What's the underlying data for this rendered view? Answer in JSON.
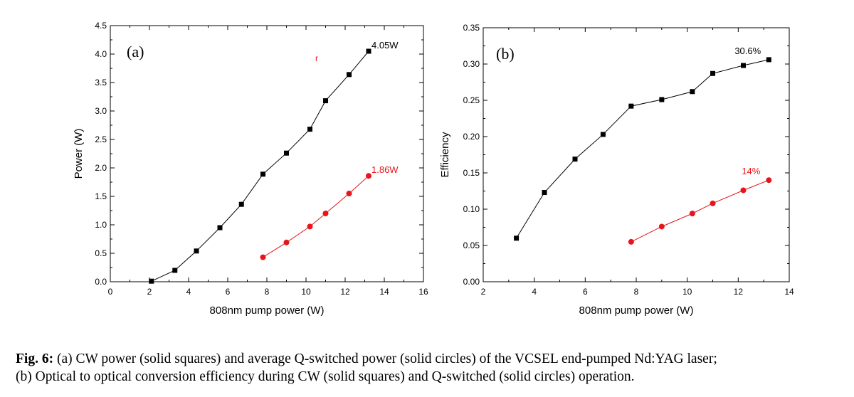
{
  "chart_data": [
    {
      "type": "line",
      "panel_label": "(a)",
      "stray_mark": "r",
      "xlabel": "808nm pump power (W)",
      "ylabel": "Power (W)",
      "xlim": [
        0,
        16
      ],
      "ylim": [
        0,
        4.5
      ],
      "xticks": [
        0,
        2,
        4,
        6,
        8,
        10,
        12,
        14,
        16
      ],
      "yticks": [
        0.0,
        0.5,
        1.0,
        1.5,
        2.0,
        2.5,
        3.0,
        3.5,
        4.0,
        4.5
      ],
      "ytick_decimals": 1,
      "grid": false,
      "series": [
        {
          "marker": "square",
          "color": "#000000",
          "x": [
            2.1,
            3.3,
            4.4,
            5.6,
            6.7,
            7.8,
            9.0,
            10.2,
            11.0,
            12.2,
            13.2
          ],
          "y": [
            0.01,
            0.2,
            0.54,
            0.95,
            1.36,
            1.89,
            2.26,
            2.68,
            3.18,
            3.64,
            4.05
          ],
          "end_label": "4.05W"
        },
        {
          "marker": "circle",
          "color": "#e8141c",
          "x": [
            7.8,
            9.0,
            10.2,
            11.0,
            12.2,
            13.2
          ],
          "y": [
            0.43,
            0.69,
            0.97,
            1.2,
            1.55,
            1.86
          ],
          "end_label": "1.86W"
        }
      ]
    },
    {
      "type": "line",
      "panel_label": "(b)",
      "xlabel": "808nm pump power (W)",
      "ylabel": "Efficiency",
      "xlim": [
        2,
        14
      ],
      "ylim": [
        0,
        0.35
      ],
      "xticks": [
        2,
        4,
        6,
        8,
        10,
        12,
        14
      ],
      "yticks": [
        0.0,
        0.05,
        0.1,
        0.15,
        0.2,
        0.25,
        0.3,
        0.35
      ],
      "ytick_decimals": 2,
      "grid": false,
      "series": [
        {
          "marker": "square",
          "color": "#000000",
          "x": [
            3.3,
            4.4,
            5.6,
            6.7,
            7.8,
            9.0,
            10.2,
            11.0,
            12.2,
            13.2
          ],
          "y": [
            0.06,
            0.123,
            0.169,
            0.203,
            0.242,
            0.251,
            0.262,
            0.287,
            0.298,
            0.306
          ],
          "end_label": "30.6%"
        },
        {
          "marker": "circle",
          "color": "#e8141c",
          "x": [
            7.8,
            9.0,
            10.2,
            11.0,
            12.2,
            13.2
          ],
          "y": [
            0.055,
            0.076,
            0.094,
            0.108,
            0.126,
            0.14
          ],
          "end_label": "14%"
        }
      ]
    }
  ],
  "caption": {
    "fig_label": "Fig. 6:",
    "line1": "(a) CW power (solid squares) and average Q-switched power (solid circles) of the VCSEL end-pumped Nd:YAG laser;",
    "line2": "(b) Optical to optical conversion efficiency during CW (solid squares) and Q-switched (solid circles) operation."
  }
}
